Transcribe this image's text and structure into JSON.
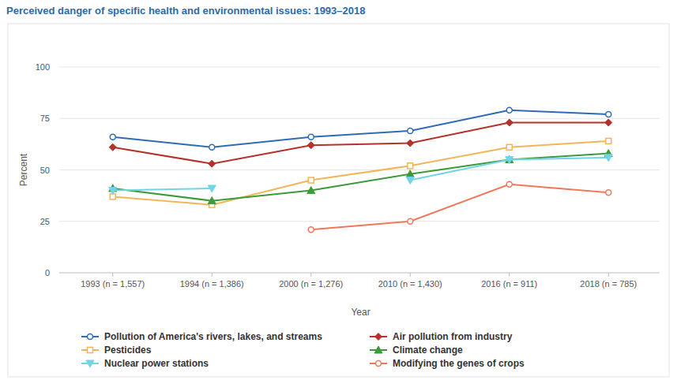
{
  "chart_data": {
    "type": "line",
    "title": "Perceived danger of specific health and environmental issues: 1993–2018",
    "x_label": "Year",
    "y_label": "Percent",
    "categories": [
      "1993 (n = 1,557)",
      "1994 (n = 1,386)",
      "2000 (n = 1,276)",
      "2010 (n = 1,430)",
      "2016 (n = 911)",
      "2018 (n = 785)"
    ],
    "ylim": [
      0,
      100
    ],
    "yticks": [
      0,
      25,
      50,
      75,
      100
    ],
    "grid": true,
    "legend": "bottom",
    "series": [
      {
        "name": "Pollution of America's rivers, lakes, and streams",
        "color": "#2f6cb3",
        "marker": "open-circle",
        "values": [
          66,
          61,
          66,
          69,
          79,
          77
        ]
      },
      {
        "name": "Air pollution from industry",
        "color": "#b5322b",
        "marker": "diamond",
        "values": [
          61,
          53,
          62,
          63,
          73,
          73
        ]
      },
      {
        "name": "Pesticides",
        "color": "#f2b55a",
        "marker": "open-square",
        "values": [
          37,
          33,
          45,
          52,
          61,
          64
        ]
      },
      {
        "name": "Climate change",
        "color": "#3d9a3a",
        "marker": "triangle",
        "values": [
          41,
          35,
          40,
          48,
          55,
          58
        ]
      },
      {
        "name": "Nuclear power stations",
        "color": "#72d4e6",
        "marker": "triangle-down",
        "values": [
          40,
          41,
          null,
          45,
          55,
          56
        ]
      },
      {
        "name": "Modifying the genes of crops",
        "color": "#ef7858",
        "marker": "open-circle",
        "values": [
          null,
          null,
          21,
          25,
          43,
          39
        ]
      }
    ]
  }
}
